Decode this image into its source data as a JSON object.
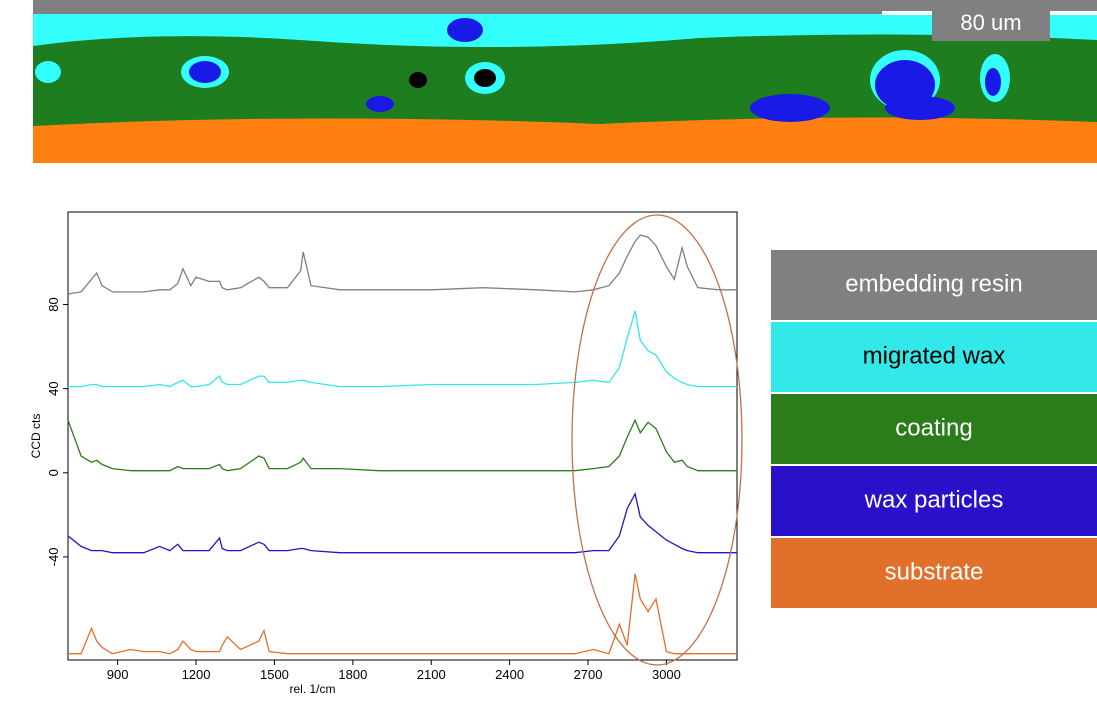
{
  "map": {
    "scale_label": "80 um"
  },
  "chart_data": {
    "type": "line",
    "x_label": "rel. 1/cm",
    "y_label": "CCD cts",
    "x": [
      710,
      760,
      800,
      820,
      840,
      880,
      950,
      1000,
      1060,
      1100,
      1130,
      1150,
      1180,
      1200,
      1250,
      1290,
      1300,
      1320,
      1370,
      1440,
      1460,
      1480,
      1550,
      1600,
      1610,
      1640,
      1750,
      1900,
      2100,
      2300,
      2500,
      2650,
      2720,
      2780,
      2820,
      2850,
      2880,
      2900,
      2930,
      2960,
      3000,
      3030,
      3060,
      3080,
      3120,
      3200,
      3270
    ],
    "series": [
      {
        "name": "embedding resin",
        "color": "#808080",
        "values": [
          85,
          86,
          92,
          95,
          89,
          86,
          86,
          86,
          87,
          87,
          90,
          97,
          89,
          93,
          91,
          91,
          88,
          87,
          88,
          93,
          91,
          88,
          88,
          96,
          105,
          89,
          87,
          87,
          87,
          88,
          87,
          86,
          87,
          89,
          95,
          103,
          110,
          113,
          112,
          108,
          98,
          92,
          107,
          98,
          88,
          87,
          87
        ]
      },
      {
        "name": "migrated wax",
        "color": "#33e8e8",
        "values": [
          41,
          41,
          42,
          42,
          41,
          41,
          41,
          41,
          42,
          41,
          43,
          44,
          41,
          41,
          42,
          46,
          43,
          42,
          42,
          46,
          46,
          43,
          43,
          44,
          44,
          43,
          41,
          41,
          42,
          42,
          42,
          43,
          44,
          43,
          50,
          64,
          77,
          63,
          58,
          56,
          48,
          45,
          43,
          42,
          41,
          41,
          41
        ]
      },
      {
        "name": "coating",
        "color": "#2a7d1a",
        "values": [
          25,
          8,
          5,
          6,
          4,
          2,
          1,
          1,
          1,
          1,
          3,
          2,
          2,
          2,
          2,
          4,
          2,
          1,
          2,
          8,
          7,
          2,
          2,
          5,
          7,
          2,
          2,
          1,
          1,
          1,
          1,
          1,
          2,
          3,
          8,
          17,
          25,
          19,
          24,
          21,
          10,
          5,
          6,
          3,
          1,
          1,
          1
        ]
      },
      {
        "name": "wax particles",
        "color": "#2a10c8",
        "values": [
          -30,
          -35,
          -37,
          -37,
          -37,
          -38,
          -38,
          -38,
          -35,
          -37,
          -34,
          -37,
          -37,
          -37,
          -37,
          -31,
          -36,
          -37,
          -37,
          -33,
          -34,
          -37,
          -37,
          -36,
          -36,
          -37,
          -38,
          -38,
          -38,
          -38,
          -38,
          -38,
          -37,
          -37,
          -30,
          -17,
          -10,
          -21,
          -25,
          -28,
          -32,
          -34,
          -36,
          -37,
          -38,
          -38,
          -38
        ]
      },
      {
        "name": "substrate",
        "color": "#e0702a",
        "values": [
          -86,
          -86,
          -74,
          -80,
          -83,
          -86,
          -84,
          -85,
          -85,
          -86,
          -84,
          -80,
          -84,
          -85,
          -85,
          -85,
          -82,
          -78,
          -84,
          -80,
          -75,
          -85,
          -86,
          -86,
          -86,
          -86,
          -86,
          -86,
          -86,
          -86,
          -86,
          -86,
          -84,
          -86,
          -72,
          -82,
          -48,
          -60,
          -66,
          -60,
          -85,
          -86,
          -86,
          -86,
          -86,
          -86,
          -86
        ]
      }
    ],
    "xlim": [
      710,
      3270
    ],
    "ylim": [
      -89,
      124
    ],
    "xticks": [
      900,
      1200,
      1500,
      1800,
      2100,
      2400,
      2700,
      3000
    ],
    "yticks": [
      -40,
      0,
      40,
      80
    ]
  }
}
